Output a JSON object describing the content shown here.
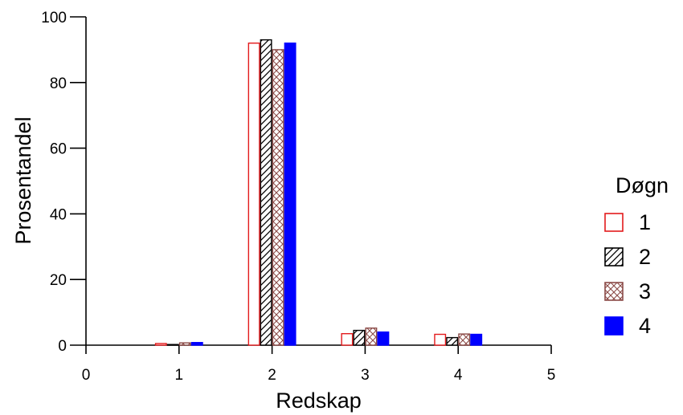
{
  "chart_data": {
    "type": "bar",
    "xlabel": "Redskap",
    "ylabel": "Prosentandel",
    "xlim": [
      0,
      5
    ],
    "ylim": [
      0,
      100
    ],
    "x_ticks": [
      "0",
      "1",
      "2",
      "3",
      "4",
      "5"
    ],
    "y_ticks": [
      "0",
      "20",
      "40",
      "60",
      "80",
      "100"
    ],
    "categories": [
      "1",
      "2",
      "3",
      "4"
    ],
    "legend": {
      "title": "Døgn",
      "placement": "right"
    },
    "series": [
      {
        "name": "1",
        "style": "open",
        "color": "#e31a1c",
        "values": [
          0.5,
          92.0,
          3.5,
          3.3
        ]
      },
      {
        "name": "2",
        "style": "hatch",
        "color": "#000000",
        "values": [
          0.2,
          93.0,
          4.5,
          2.3
        ]
      },
      {
        "name": "3",
        "style": "crosshatch",
        "color": "#8b4a47",
        "values": [
          0.7,
          90.0,
          5.2,
          3.4
        ]
      },
      {
        "name": "4",
        "style": "solid",
        "color": "#0000ff",
        "values": [
          0.8,
          92.0,
          4.0,
          3.3
        ]
      }
    ],
    "grid": false
  }
}
